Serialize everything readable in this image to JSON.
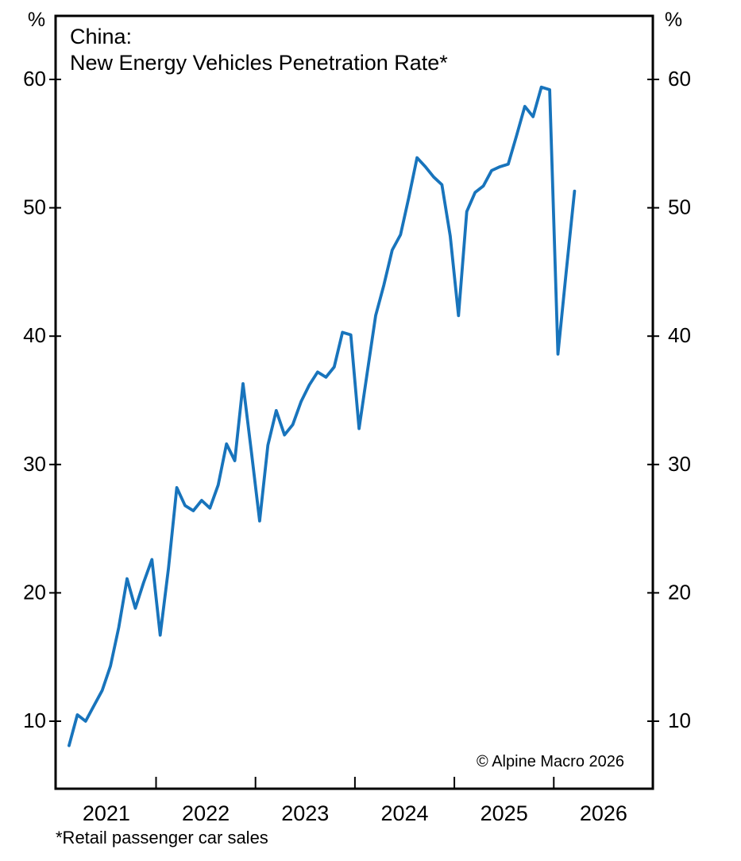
{
  "figure": {
    "title_line1": "China:",
    "title_line2": "New Energy Vehicles Penetration Rate*",
    "footnote": "*Retail passenger car sales",
    "copyright": "© Alpine Macro 2026"
  },
  "colors": {
    "line": "#1874bc",
    "axis": "#000000",
    "text": "#000000",
    "background": "#ffffff"
  },
  "chart_data": {
    "type": "line",
    "title": "China: New Energy Vehicles Penetration Rate*",
    "unit": "%",
    "ylabel_left": "%",
    "ylabel_right": "%",
    "ylim": [
      4.7,
      65
    ],
    "xlim": [
      "2021-01",
      "2027-01"
    ],
    "y_ticks": [
      10,
      20,
      30,
      40,
      50,
      60
    ],
    "x_year_boundary_ticks": [
      "2022",
      "2023",
      "2024",
      "2025",
      "2026"
    ],
    "x_year_labels": [
      "2021",
      "2022",
      "2023",
      "2024",
      "2025",
      "2026"
    ],
    "grid": false,
    "legend": "none",
    "series": [
      {
        "name": "China NEV penetration rate (% of retail passenger car sales)",
        "points": [
          [
            "2021-02",
            8.1
          ],
          [
            "2021-03",
            10.5
          ],
          [
            "2021-04",
            10.0
          ],
          [
            "2021-05",
            11.2
          ],
          [
            "2021-06",
            12.4
          ],
          [
            "2021-07",
            14.3
          ],
          [
            "2021-08",
            17.3
          ],
          [
            "2021-09",
            21.1
          ],
          [
            "2021-10",
            18.8
          ],
          [
            "2021-11",
            20.8
          ],
          [
            "2021-12",
            22.6
          ],
          [
            "2022-01",
            16.7
          ],
          [
            "2022-02",
            21.9
          ],
          [
            "2022-03",
            28.2
          ],
          [
            "2022-04",
            26.8
          ],
          [
            "2022-05",
            26.4
          ],
          [
            "2022-06",
            27.2
          ],
          [
            "2022-07",
            26.6
          ],
          [
            "2022-08",
            28.4
          ],
          [
            "2022-09",
            31.6
          ],
          [
            "2022-10",
            30.3
          ],
          [
            "2022-11",
            36.3
          ],
          [
            "2022-12",
            31.0
          ],
          [
            "2023-01",
            25.6
          ],
          [
            "2023-02",
            31.5
          ],
          [
            "2023-03",
            34.2
          ],
          [
            "2023-04",
            32.3
          ],
          [
            "2023-05",
            33.1
          ],
          [
            "2023-06",
            34.9
          ],
          [
            "2023-07",
            36.2
          ],
          [
            "2023-08",
            37.2
          ],
          [
            "2023-09",
            36.8
          ],
          [
            "2023-10",
            37.6
          ],
          [
            "2023-11",
            40.3
          ],
          [
            "2023-12",
            40.1
          ],
          [
            "2024-01",
            32.8
          ],
          [
            "2024-02",
            37.2
          ],
          [
            "2024-03",
            41.6
          ],
          [
            "2024-04",
            44.0
          ],
          [
            "2024-05",
            46.7
          ],
          [
            "2024-06",
            47.9
          ],
          [
            "2024-07",
            50.8
          ],
          [
            "2024-08",
            53.9
          ],
          [
            "2024-09",
            53.2
          ],
          [
            "2024-10",
            52.4
          ],
          [
            "2024-11",
            51.8
          ],
          [
            "2024-12",
            47.8
          ],
          [
            "2025-01",
            41.6
          ],
          [
            "2025-02",
            49.7
          ],
          [
            "2025-03",
            51.2
          ],
          [
            "2025-04",
            51.7
          ],
          [
            "2025-05",
            52.9
          ],
          [
            "2025-06",
            53.2
          ],
          [
            "2025-07",
            53.4
          ],
          [
            "2025-08",
            55.6
          ],
          [
            "2025-09",
            57.9
          ],
          [
            "2025-10",
            57.1
          ],
          [
            "2025-11",
            59.4
          ],
          [
            "2025-12",
            59.2
          ],
          [
            "2026-01",
            38.6
          ],
          [
            "2026-02",
            45.0
          ],
          [
            "2026-03",
            51.3
          ]
        ]
      }
    ]
  }
}
